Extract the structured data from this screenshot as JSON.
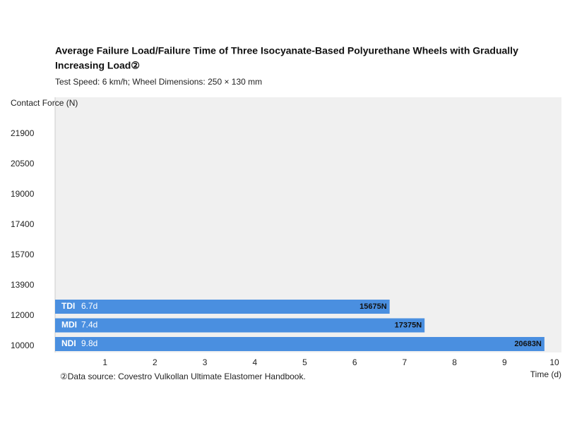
{
  "chart_data": {
    "type": "bar",
    "orientation": "horizontal",
    "title": "Average Failure Load/Failure Time of Three Isocyanate-Based Polyurethane Wheels with Gradually",
    "title_line2": "Increasing Load②",
    "subtitle": "Test Speed: 6 km/h; Wheel Dimensions: 250 × 130 mm",
    "y_label": "Contact Force (N)",
    "x_label": "Time (d)",
    "footnote": "②Data source: Covestro Vulkollan Ultimate Elastomer Handbook.",
    "yticks": [
      21900,
      20500,
      19000,
      17400,
      15700,
      13900,
      12000,
      10000
    ],
    "categories": [
      "TDI",
      "MDI",
      "NDI"
    ],
    "values": [
      6.7,
      7.4,
      9.8
    ],
    "value_labels": [
      "6.7d",
      "7.4d",
      "9.8d"
    ],
    "forces": [
      15675,
      17375,
      20683
    ],
    "force_labels": [
      "15675N",
      "17375N",
      "20683N"
    ],
    "color": "#4a8fe0",
    "xlim": [
      0,
      10
    ],
    "xticks": [
      1,
      2,
      3,
      4,
      5,
      6,
      7,
      8,
      9,
      10
    ]
  }
}
